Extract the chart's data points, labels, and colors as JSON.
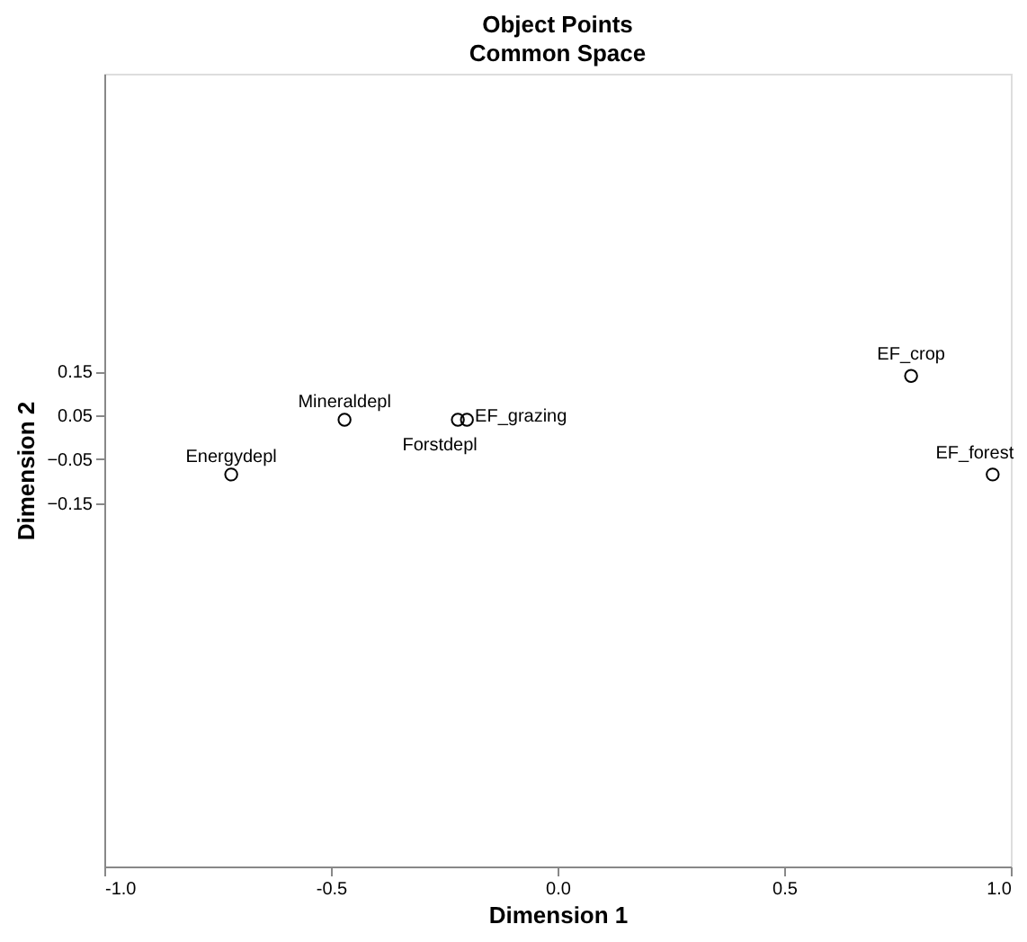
{
  "chart_data": {
    "type": "scatter",
    "title": "Object Points",
    "subtitle": "Common Space",
    "xlabel": "Dimension 1",
    "ylabel": "Dimension 2",
    "x": [
      -0.72,
      -0.47,
      -0.22,
      -0.2,
      0.78,
      0.96
    ],
    "values": [
      -0.085,
      0.04,
      0.04,
      0.04,
      0.14,
      -0.085
    ],
    "color": "#000000",
    "marker": "circle",
    "xlim": [
      -1.0,
      1.0
    ],
    "xticks": [
      {
        "value": -1.0,
        "label": "-1.0"
      },
      {
        "value": -0.5,
        "label": "-0.5"
      },
      {
        "value": 0,
        "label": "0.0"
      },
      {
        "value": 0.5,
        "label": "0.5"
      },
      {
        "value": 1.0,
        "label": "1.0"
      }
    ],
    "ylim": [
      -0.98,
      0.83
    ],
    "yticks": [
      0.15,
      0.05,
      -0.05,
      -0.15
    ],
    "grid": false,
    "annotations": [
      {
        "text": "Energydepl",
        "x": -0.72,
        "y": -0.085
      },
      {
        "text": "Mineraldepl",
        "x": -0.47,
        "y": 0.04
      },
      {
        "text": "Forstdepl",
        "x": -0.22,
        "y": 0.04
      },
      {
        "text": "EF_grazing",
        "x": -0.2,
        "y": 0.04
      },
      {
        "text": "EF_crop",
        "x": 0.78,
        "y": 0.14
      },
      {
        "text": "EF_forest",
        "x": 0.96,
        "y": -0.085
      }
    ]
  }
}
